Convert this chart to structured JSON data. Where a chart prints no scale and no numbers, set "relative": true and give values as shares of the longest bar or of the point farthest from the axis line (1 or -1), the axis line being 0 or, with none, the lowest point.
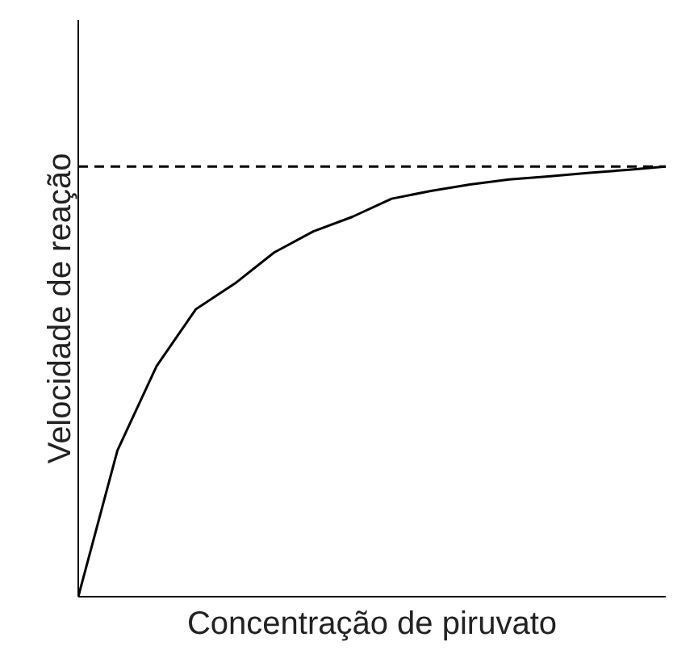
{
  "chart_data": {
    "type": "line",
    "relative": true,
    "xlabel": "Concentração de piruvato",
    "ylabel": "Velocidade de reação",
    "categories": [
      null,
      null,
      null,
      null,
      null,
      null,
      null,
      null,
      null,
      null,
      null,
      null,
      null,
      null,
      null,
      null
    ],
    "series": [
      {
        "color": "#000000",
        "values": [
          0,
          0.34,
          0.536,
          0.668,
          0.728,
          0.8,
          0.849,
          0.883,
          0.925,
          0.943,
          0.958,
          0.97,
          0.977,
          0.985,
          0.992,
          1.0
        ]
      }
    ],
    "ref_lines": [
      {
        "axis": "y",
        "value": 1,
        "color": "#000000",
        "line_style": "dashed"
      }
    ],
    "grid": false,
    "line_style": "solid",
    "marker": "none"
  }
}
